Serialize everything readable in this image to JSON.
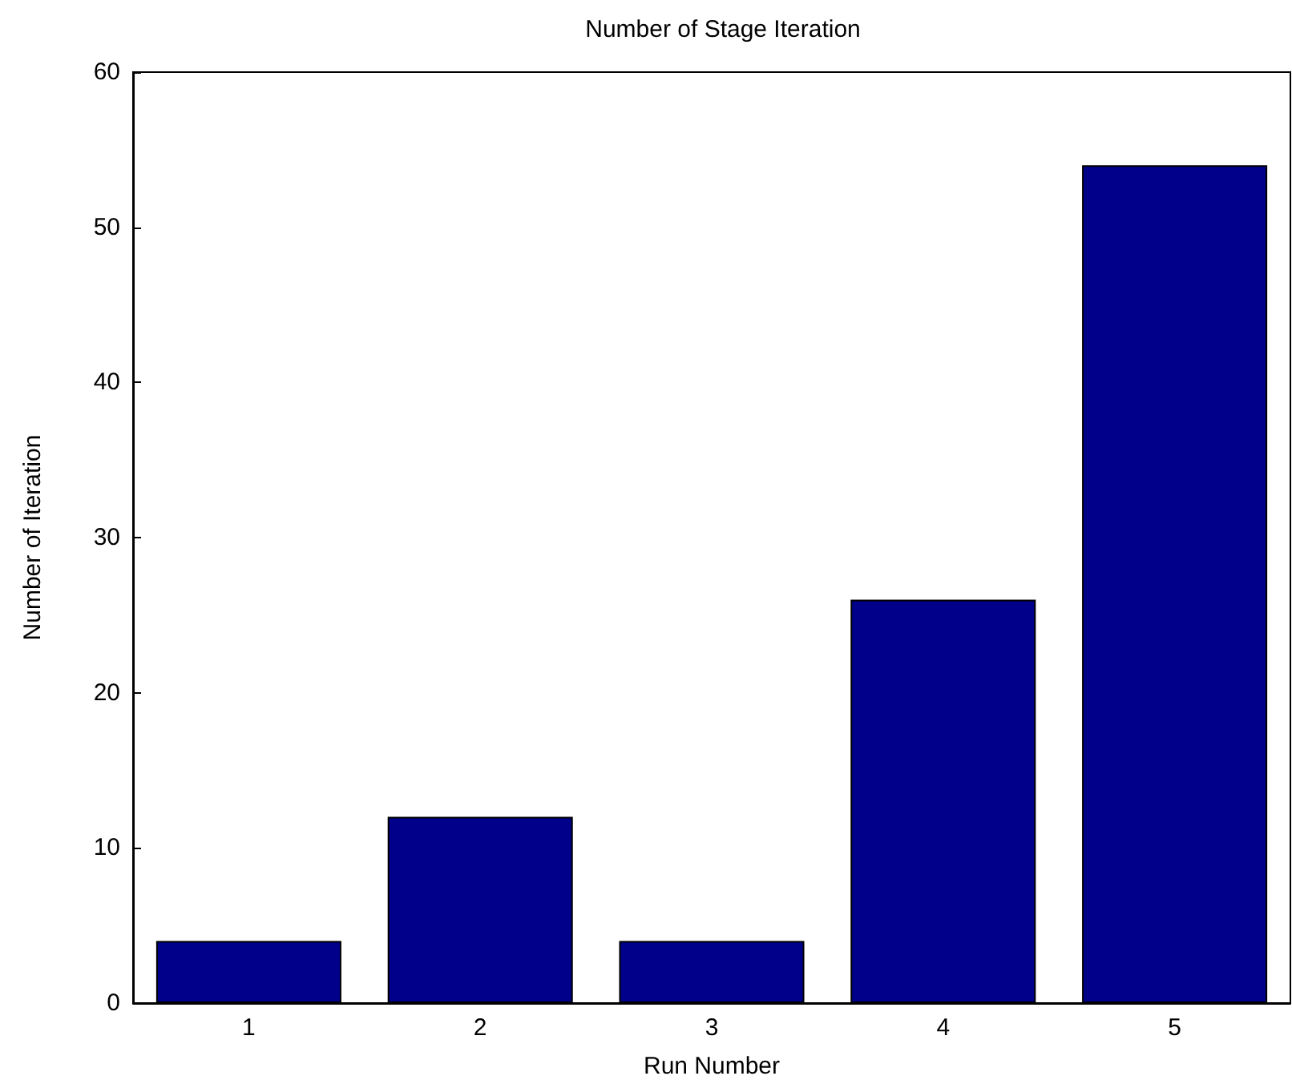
{
  "chart_data": {
    "type": "bar",
    "title": "Number of Stage Iteration",
    "xlabel": "Run Number",
    "ylabel": "Number of Iteration",
    "categories": [
      "1",
      "2",
      "3",
      "4",
      "5"
    ],
    "values": [
      4,
      12,
      4,
      26,
      54
    ],
    "color": "#00008b",
    "ylim": [
      0,
      60
    ],
    "yticks": [
      0,
      10,
      20,
      30,
      40,
      50,
      60
    ],
    "grid": false
  }
}
